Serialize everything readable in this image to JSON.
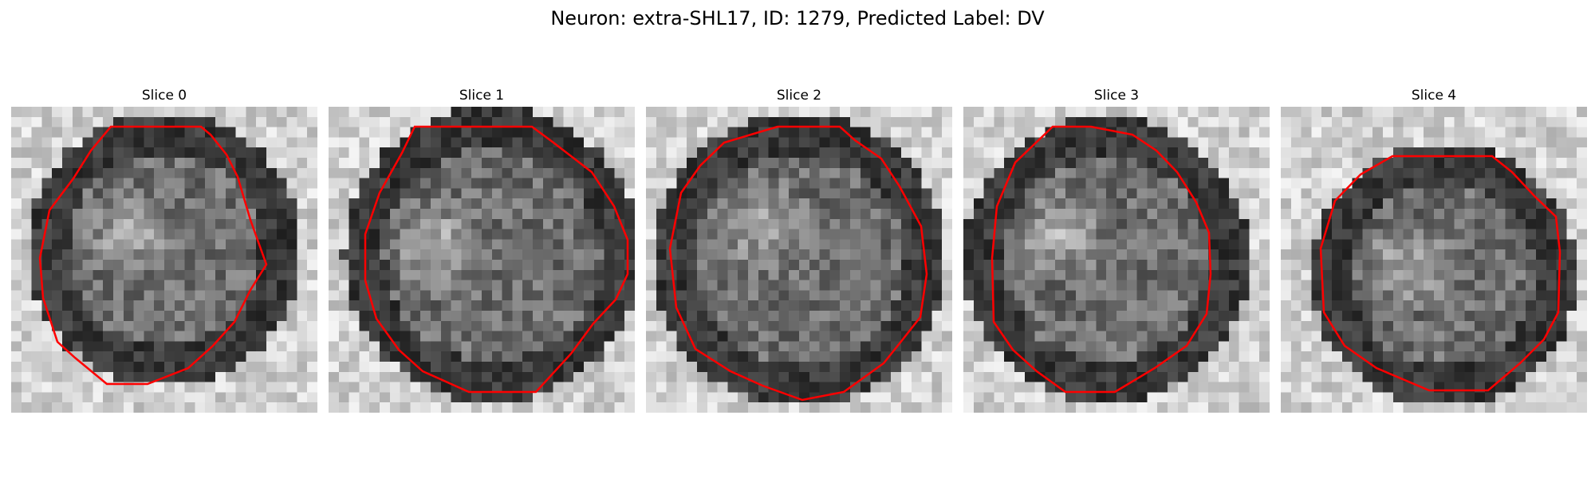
{
  "title": "Neuron: extra-SHL17, ID: 1279, Predicted Label: DV",
  "panels": [
    {
      "label": "Slice 0"
    },
    {
      "label": "Slice 1"
    },
    {
      "label": "Slice 2"
    },
    {
      "label": "Slice 3"
    },
    {
      "label": "Slice 4"
    }
  ],
  "colors": {
    "contour": "#ff0000",
    "colormap": "grayscale"
  }
}
